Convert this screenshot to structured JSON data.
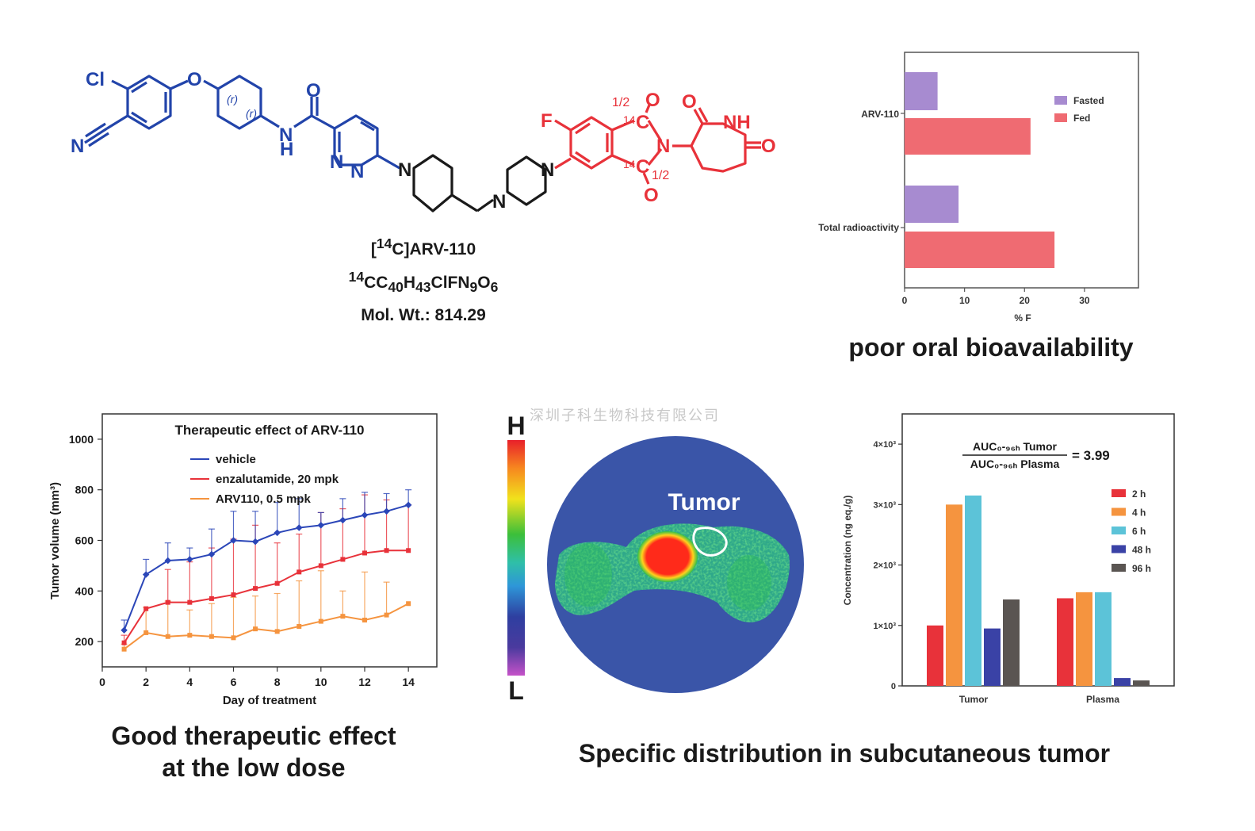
{
  "molecule": {
    "name_html": "[<sup>14</sup>C]ARV-110",
    "formula_html": "<sup>14</sup>CC<sub>40</sub>H<sub>43</sub>ClFN<sub>9</sub>O<sub>6</sub>",
    "mol_wt": "Mol. Wt.: 814.29",
    "atom_labels": {
      "cl": "Cl",
      "o": "O",
      "n": "N",
      "h": "H",
      "nh": "NH",
      "f": "F",
      "frac": "1/2",
      "iso": "14",
      "c": "C",
      "r": "(r)"
    },
    "colors": {
      "blue_part": "#2244aa",
      "red_part": "#e8323a",
      "black_part": "#1a1a1a"
    }
  },
  "captions": {
    "bioavailability": "poor oral bioavailability",
    "therapeutic_line1": "Good therapeutic effect",
    "therapeutic_line2": "at the low dose",
    "distribution": "Specific distribution in subcutaneous tumor"
  },
  "watermark": "深圳子科生物科技有限公司",
  "autoradiograph": {
    "scale_top": "H",
    "scale_bottom": "L",
    "tumor_label": "Tumor"
  },
  "chart_data": [
    {
      "id": "bioavailability",
      "type": "bar",
      "orientation": "horizontal",
      "categories": [
        "ARV-110",
        "Total radioactivity"
      ],
      "series": [
        {
          "name": "Fasted",
          "color": "#a78bd0",
          "values": [
            5.5,
            9
          ]
        },
        {
          "name": "Fed",
          "color": "#ef6b72",
          "values": [
            21,
            25
          ]
        }
      ],
      "xlabel": "% F",
      "xlim": [
        0,
        39
      ],
      "xticks": [
        0,
        10,
        20,
        30
      ],
      "legend": "top-right"
    },
    {
      "id": "tumor_volume",
      "type": "line",
      "title": "Therapeutic effect of ARV-110",
      "xlabel": "Day of treatment",
      "ylabel": "Tumor volume (mm³)",
      "xlim": [
        0,
        15.3
      ],
      "ylim": [
        100,
        1100
      ],
      "xticks": [
        0,
        2,
        4,
        6,
        8,
        10,
        12,
        14
      ],
      "yticks": [
        200,
        400,
        600,
        800,
        1000
      ],
      "x": [
        1,
        2,
        3,
        4,
        5,
        6,
        7,
        8,
        9,
        10,
        11,
        12,
        13,
        14
      ],
      "series": [
        {
          "name": "vehicle",
          "color": "#2b46b8",
          "marker": "diamond",
          "values": [
            245,
            465,
            520,
            525,
            545,
            600,
            595,
            630,
            650,
            660,
            680,
            700,
            715,
            740
          ],
          "err": [
            40,
            60,
            70,
            45,
            100,
            115,
            120,
            120,
            115,
            50,
            85,
            90,
            70,
            60
          ]
        },
        {
          "name": "enzalutamide, 20 mpk",
          "color": "#e8323a",
          "marker": "cross",
          "values": [
            195,
            330,
            355,
            355,
            370,
            385,
            410,
            430,
            475,
            500,
            525,
            550,
            560,
            560
          ],
          "err": [
            30,
            0,
            130,
            160,
            200,
            220,
            250,
            160,
            150,
            210,
            200,
            230,
            200,
            180
          ]
        },
        {
          "name": "ARV110, 0.5 mpk",
          "color": "#f5943f",
          "marker": "square",
          "values": [
            170,
            235,
            220,
            225,
            220,
            215,
            250,
            240,
            260,
            280,
            300,
            285,
            305,
            350
          ],
          "err": [
            20,
            100,
            140,
            100,
            130,
            160,
            130,
            150,
            180,
            200,
            100,
            190,
            130,
            0
          ]
        }
      ],
      "legend": "top-left"
    },
    {
      "id": "tissue_concentration",
      "type": "bar",
      "categories": [
        "Tumor",
        "Plasma"
      ],
      "series": [
        {
          "name": "2 h",
          "color": "#e8323a",
          "values": [
            1000,
            1450
          ]
        },
        {
          "name": "4 h",
          "color": "#f5943f",
          "values": [
            3000,
            1550
          ]
        },
        {
          "name": "6 h",
          "color": "#5cc3d8",
          "values": [
            3150,
            1550
          ]
        },
        {
          "name": "48 h",
          "color": "#3a42a6",
          "values": [
            950,
            130
          ]
        },
        {
          "name": "96 h",
          "color": "#5a5552",
          "values": [
            1430,
            90
          ]
        }
      ],
      "ylabel": "Concentration (ng eq./g)",
      "ylim": [
        0,
        4500
      ],
      "yticks": [
        0,
        1000,
        2000,
        3000,
        4000
      ],
      "ytick_labels": [
        "0",
        "1×10³",
        "2×10³",
        "3×10³",
        "4×10³"
      ],
      "annotation": {
        "numerator": "AUC₀-₉₆ₕ Tumor",
        "denominator": "AUC₀-₉₆ₕ Plasma",
        "value": "= 3.99"
      },
      "legend": "top-right"
    }
  ]
}
